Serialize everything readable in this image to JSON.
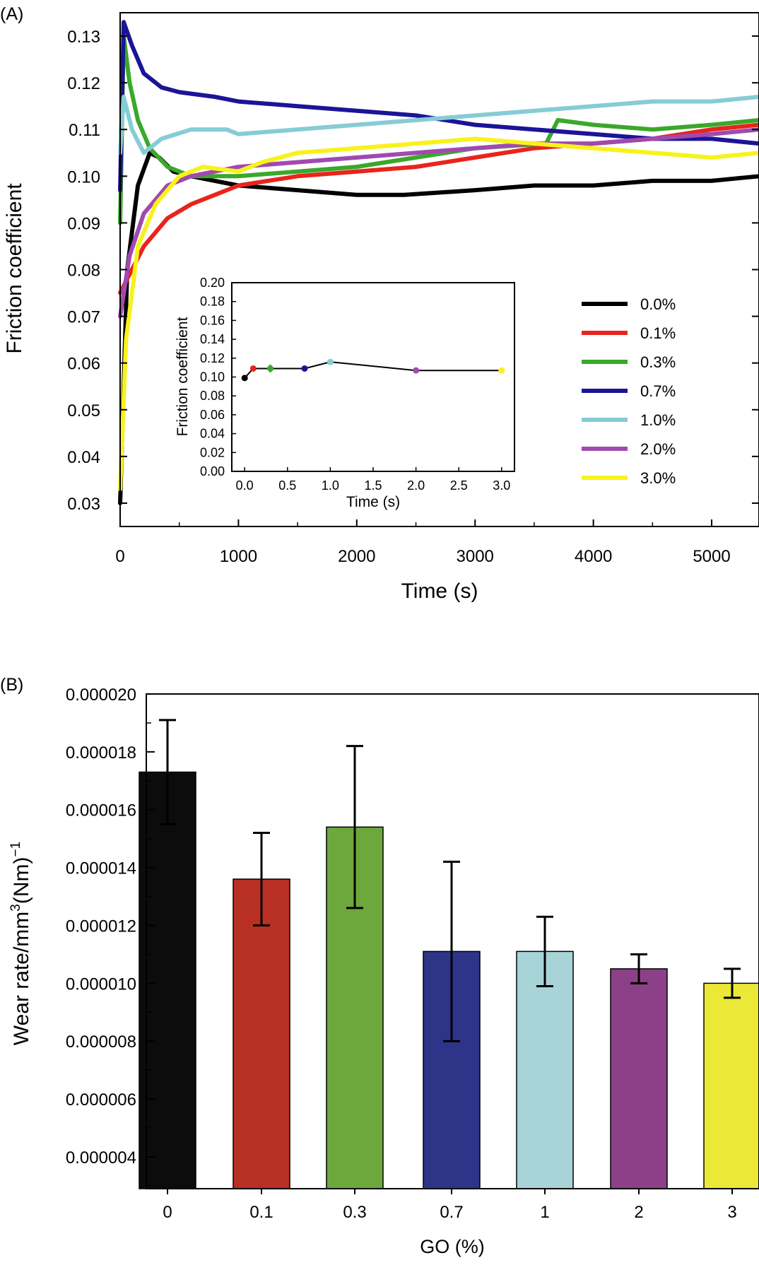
{
  "chart_data": [
    {
      "panel_label": "(A)",
      "type": "line",
      "xlabel": "Time (s)",
      "ylabel": "Friction coefficient",
      "xlim": [
        0,
        5400
      ],
      "ylim": [
        0.025,
        0.135
      ],
      "xticks": [
        "0",
        "1000",
        "2000",
        "3000",
        "4000",
        "5000"
      ],
      "yticks": [
        "0.03",
        "0.04",
        "0.05",
        "0.06",
        "0.07",
        "0.08",
        "0.09",
        "0.10",
        "0.11",
        "0.12",
        "0.13"
      ],
      "legend_position": "right-middle",
      "colors": [
        "#000000",
        "#e8241c",
        "#3aa82a",
        "#1c1496",
        "#86ccd6",
        "#a04ab0",
        "#f8f21c"
      ],
      "series": [
        {
          "name": "0.0%",
          "x": [
            0,
            60,
            150,
            250,
            330,
            450,
            600,
            800,
            1000,
            1500,
            2000,
            2400,
            3000,
            3500,
            4000,
            4500,
            5000,
            5400
          ],
          "y": [
            0.03,
            0.08,
            0.098,
            0.105,
            0.104,
            0.101,
            0.1,
            0.099,
            0.098,
            0.097,
            0.096,
            0.096,
            0.097,
            0.098,
            0.098,
            0.099,
            0.099,
            0.1
          ]
        },
        {
          "name": "0.1%",
          "x": [
            0,
            100,
            200,
            400,
            600,
            800,
            1000,
            1500,
            2000,
            2500,
            3000,
            3500,
            4000,
            4500,
            5000,
            5400
          ],
          "y": [
            0.075,
            0.08,
            0.085,
            0.091,
            0.094,
            0.096,
            0.098,
            0.1,
            0.101,
            0.102,
            0.104,
            0.106,
            0.107,
            0.108,
            0.11,
            0.111
          ]
        },
        {
          "name": "0.3%",
          "x": [
            0,
            30,
            80,
            150,
            250,
            400,
            600,
            1000,
            1500,
            2000,
            2500,
            3000,
            3600,
            3700,
            4000,
            4500,
            5000,
            5400
          ],
          "y": [
            0.09,
            0.13,
            0.12,
            0.112,
            0.106,
            0.102,
            0.1,
            0.1,
            0.101,
            0.102,
            0.104,
            0.106,
            0.107,
            0.112,
            0.111,
            0.11,
            0.111,
            0.112
          ]
        },
        {
          "name": "0.7%",
          "x": [
            0,
            30,
            100,
            200,
            350,
            500,
            800,
            1000,
            1500,
            2000,
            2500,
            3000,
            3500,
            4000,
            4500,
            5000,
            5400
          ],
          "y": [
            0.097,
            0.133,
            0.128,
            0.122,
            0.119,
            0.118,
            0.117,
            0.116,
            0.115,
            0.114,
            0.113,
            0.111,
            0.11,
            0.109,
            0.108,
            0.108,
            0.107
          ]
        },
        {
          "name": "1.0%",
          "x": [
            0,
            30,
            100,
            200,
            350,
            600,
            900,
            1000,
            1500,
            2000,
            2500,
            3000,
            3500,
            4000,
            4500,
            5000,
            5400
          ],
          "y": [
            0.105,
            0.117,
            0.11,
            0.105,
            0.108,
            0.11,
            0.11,
            0.109,
            0.11,
            0.111,
            0.112,
            0.113,
            0.114,
            0.115,
            0.116,
            0.116,
            0.117
          ]
        },
        {
          "name": "2.0%",
          "x": [
            0,
            80,
            200,
            400,
            600,
            800,
            1000,
            1500,
            2000,
            2500,
            3000,
            3500,
            4000,
            4500,
            5000,
            5400
          ],
          "y": [
            0.07,
            0.083,
            0.092,
            0.098,
            0.1,
            0.101,
            0.102,
            0.103,
            0.104,
            0.105,
            0.106,
            0.107,
            0.107,
            0.108,
            0.109,
            0.11
          ]
        },
        {
          "name": "3.0%",
          "x": [
            0,
            50,
            150,
            300,
            500,
            700,
            1000,
            1200,
            1500,
            2000,
            2500,
            3000,
            3500,
            4000,
            4500,
            5000,
            5400
          ],
          "y": [
            0.033,
            0.065,
            0.085,
            0.094,
            0.1,
            0.102,
            0.101,
            0.103,
            0.105,
            0.106,
            0.107,
            0.108,
            0.107,
            0.106,
            0.105,
            0.104,
            0.105
          ]
        }
      ],
      "inset": {
        "type": "line",
        "xlabel": "Time (s)",
        "ylabel": "Friction coefficient",
        "xlim": [
          -0.15,
          3.15
        ],
        "ylim": [
          0,
          0.2
        ],
        "xticks": [
          "0.0",
          "0.5",
          "1.0",
          "1.5",
          "2.0",
          "2.5",
          "3.0"
        ],
        "yticks": [
          "0.00",
          "0.02",
          "0.04",
          "0.06",
          "0.08",
          "0.10",
          "0.12",
          "0.14",
          "0.16",
          "0.18",
          "0.20"
        ],
        "x": [
          0,
          0.1,
          0.3,
          0.7,
          1.0,
          2.0,
          3.0
        ],
        "y": [
          0.099,
          0.109,
          0.109,
          0.109,
          0.116,
          0.107,
          0.107
        ],
        "err": [
          0,
          0.003,
          0.004,
          0,
          0,
          0,
          0
        ]
      }
    },
    {
      "panel_label": "(B)",
      "type": "bar",
      "xlabel": "GO (%)",
      "ylabel_main": "Wear rate/mm",
      "ylabel_sup": "3",
      "ylabel_mid": "(Nm)",
      "ylabel_sup2": "−1",
      "categories": [
        "0",
        "0.1",
        "0.3",
        "0.7",
        "1",
        "2",
        "3"
      ],
      "values": [
        1.73e-05,
        1.36e-05,
        1.54e-05,
        1.11e-05,
        1.11e-05,
        1.05e-05,
        1e-05
      ],
      "errors": [
        1.8e-06,
        1.6e-06,
        2.8e-06,
        3.1e-06,
        1.2e-06,
        5e-07,
        5e-07
      ],
      "colors": [
        "#0c0c0c",
        "#b83024",
        "#6ca83c",
        "#2e3488",
        "#a8d4d8",
        "#8c4088",
        "#ece838"
      ],
      "ylim": [
        2.9e-06,
        2e-05
      ],
      "yticks": [
        "0.000004",
        "0.000006",
        "0.000008",
        "0.000010",
        "0.000012",
        "0.000014",
        "0.000016",
        "0.000018",
        "0.000020"
      ]
    }
  ]
}
